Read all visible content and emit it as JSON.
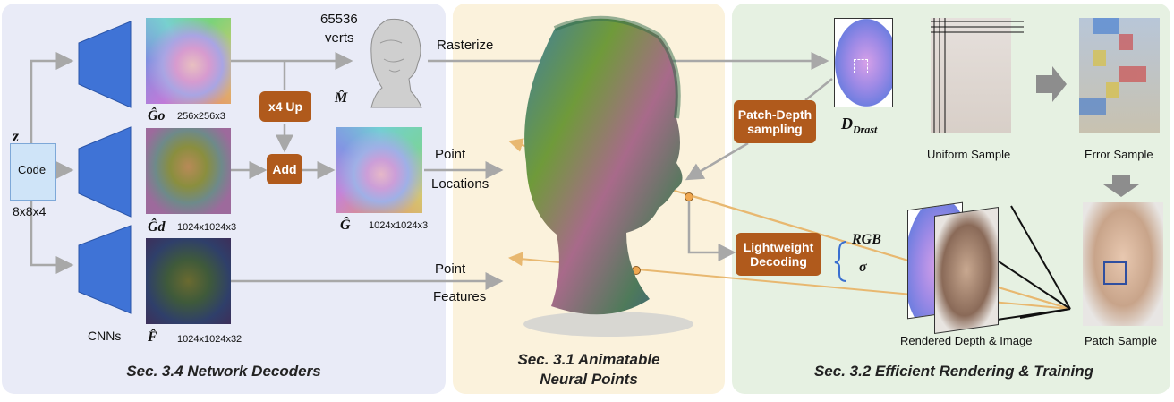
{
  "sections": {
    "decoders": "Sec. 3.4 Network Decoders",
    "points_line1": "Sec. 3.1 Animatable",
    "points_line2": "Neural Points",
    "rendering": "Sec. 3.2 Efficient Rendering & Training"
  },
  "decoders": {
    "z_label": "z",
    "code_label": "Code",
    "code_dims": "8x8x4",
    "cnn_label": "CNNs",
    "go_label": "Ĝo",
    "go_dims": "256x256x3",
    "gd_label": "Ĝd",
    "gd_dims": "1024x1024x3",
    "f_label": "F̂",
    "f_dims": "1024x1024x32",
    "up_label": "x4 Up",
    "add_label": "Add",
    "g_label": "Ĝ",
    "g_dims": "1024x1024x3",
    "verts_count": "65536",
    "verts_word": "verts",
    "mesh_label": "M̂"
  },
  "flow": {
    "rasterize": "Rasterize",
    "point": "Point",
    "locations": "Locations",
    "point2": "Point",
    "features": "Features"
  },
  "rendering": {
    "patch_depth_1": "Patch-Depth",
    "patch_depth_2": "sampling",
    "drast_label": "Drast",
    "lightweight_1": "Lightweight",
    "lightweight_2": "Decoding",
    "rgb": "RGB",
    "sigma": "σ",
    "uniform_sample": "Uniform Sample",
    "error_sample": "Error Sample",
    "rendered_label": "Rendered Depth & Image",
    "patch_sample": "Patch Sample"
  },
  "colors": {
    "panel_left": "#e9ebf7",
    "panel_mid": "#fbf2dc",
    "panel_right": "#e6f1e2",
    "cnn_blue": "#3f73d6",
    "orange_box": "#b05a1c",
    "arrow_gray": "#a8a8a8",
    "ray_orange": "#e8b870"
  }
}
